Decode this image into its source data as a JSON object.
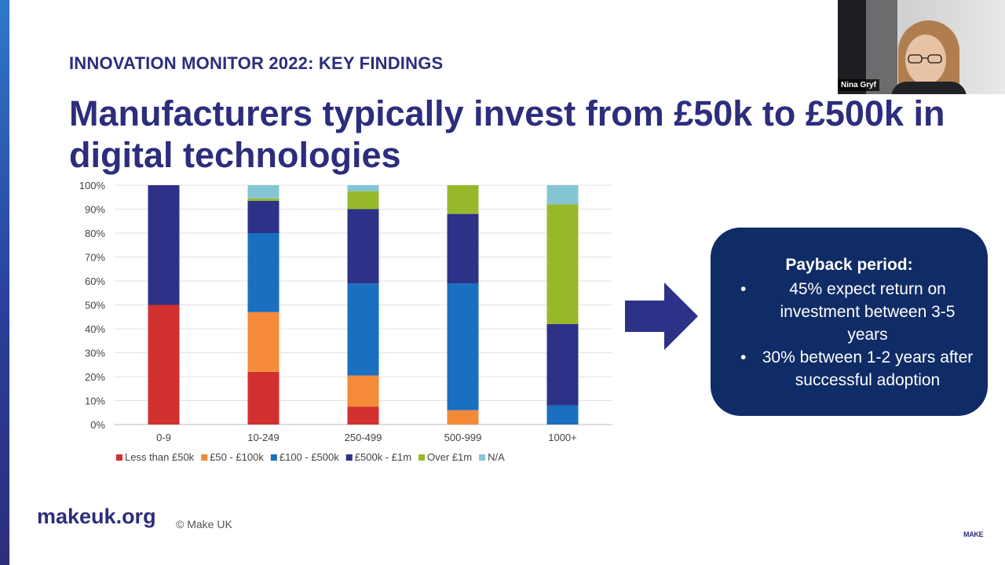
{
  "slide": {
    "kicker": "INNOVATION MONITOR 2022: KEY FINDINGS",
    "headline": "Manufacturers typically invest from £50k to £500k in digital technologies",
    "accent_color": "#2c2d7c"
  },
  "callout": {
    "title": "Payback period:",
    "bullets": [
      "45% expect return on investment between 3-5 years",
      "30% between 1-2 years after successful adoption"
    ],
    "background": "#0f2c66"
  },
  "footer": {
    "link": "makeuk.org",
    "copyright": "© Make UK",
    "logo_text": "MAKE"
  },
  "video": {
    "participant_name": "Nina Gryf"
  },
  "chart_data": {
    "type": "bar",
    "stacked": true,
    "categories": [
      "0-9",
      "10-249",
      "250-499",
      "500-999",
      "1000+"
    ],
    "y_unit": "%",
    "ylim": [
      0,
      100
    ],
    "y_ticks": [
      "0%",
      "10%",
      "20%",
      "30%",
      "40%",
      "50%",
      "60%",
      "70%",
      "80%",
      "90%",
      "100%"
    ],
    "grid": true,
    "legend_position": "bottom",
    "series": [
      {
        "name": "Less than £50k",
        "color": "#d1302f",
        "values": [
          50,
          22,
          7.5,
          0,
          0
        ]
      },
      {
        "name": "£50 - £100k",
        "color": "#f58a38",
        "values": [
          0,
          25,
          13,
          6,
          0
        ]
      },
      {
        "name": "£100 - £500k",
        "color": "#1a6fc0",
        "values": [
          0,
          33,
          38.5,
          53,
          8
        ]
      },
      {
        "name": "£500k - £1m",
        "color": "#2d3188",
        "values": [
          50,
          13.5,
          31,
          29,
          34
        ]
      },
      {
        "name": "Over £1m",
        "color": "#98b82c",
        "values": [
          0,
          1,
          7.5,
          12,
          50
        ]
      },
      {
        "name": "N/A",
        "color": "#84c6d4",
        "values": [
          0,
          5.5,
          2.5,
          0,
          8
        ]
      }
    ]
  }
}
